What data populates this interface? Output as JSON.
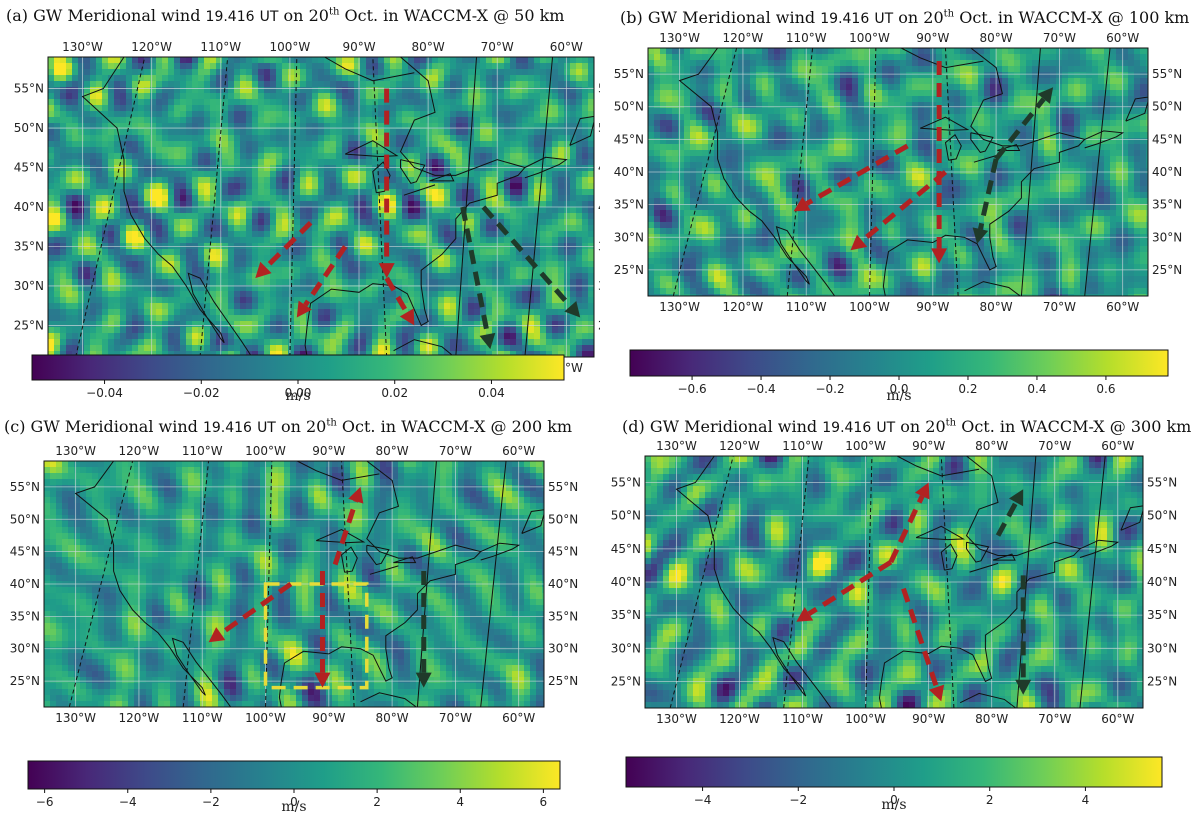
{
  "chart_data": [
    {
      "type": "heatmap",
      "panel_label": "(a)",
      "title": {
        "prefix": "GW Meridional wind",
        "time": "19.416",
        "time_unit": "UT",
        "date_pre": "on 20",
        "date_sup": "th",
        "date_post": "Oct. in WACCM-X @ 50 km"
      },
      "x_ticks": [
        "130°W",
        "120°W",
        "110°W",
        "100°W",
        "90°W",
        "80°W",
        "70°W",
        "60°W"
      ],
      "y_ticks": [
        "25°N",
        "30°N",
        "35°N",
        "40°N",
        "45°N",
        "50°N",
        "55°N"
      ],
      "xlim": [
        -135,
        -56
      ],
      "ylim": [
        21,
        59
      ],
      "colorbar": {
        "vmin": -0.055,
        "vmax": 0.055,
        "ticks": [
          -0.04,
          -0.02,
          0.0,
          0.02,
          0.04
        ],
        "tick_labels": [
          "−0.04",
          "−0.02",
          "0.00",
          "0.02",
          "0.04"
        ],
        "label": "m/s",
        "colormap": "viridis"
      },
      "arrows": [
        {
          "color": "#b22222",
          "from": [
            -86,
            55
          ],
          "to": [
            -86,
            31
          ]
        },
        {
          "color": "#b22222",
          "from": [
            -86,
            31
          ],
          "to": [
            -82,
            25
          ]
        },
        {
          "color": "#b22222",
          "from": [
            -97,
            38
          ],
          "to": [
            -105,
            31
          ]
        },
        {
          "color": "#b22222",
          "from": [
            -92,
            35
          ],
          "to": [
            -99,
            26
          ]
        },
        {
          "color": "#1f3a2a",
          "from": [
            -75,
            40
          ],
          "to": [
            -71,
            22
          ]
        },
        {
          "color": "#1f3a2a",
          "from": [
            -72,
            40
          ],
          "to": [
            -58,
            26
          ]
        }
      ],
      "box": null
    },
    {
      "type": "heatmap",
      "panel_label": "(b)",
      "title": {
        "prefix": "GW Meridional wind",
        "time": "19.416",
        "time_unit": "UT",
        "date_pre": "on 20",
        "date_sup": "th",
        "date_post": "Oct. in WACCM-X @ 100 km"
      },
      "x_ticks": [
        "130°W",
        "120°W",
        "110°W",
        "100°W",
        "90°W",
        "80°W",
        "70°W",
        "60°W"
      ],
      "y_ticks": [
        "25°N",
        "30°N",
        "35°N",
        "40°N",
        "45°N",
        "50°N",
        "55°N"
      ],
      "xlim": [
        -135,
        -56
      ],
      "ylim": [
        21,
        59
      ],
      "colorbar": {
        "vmin": -0.78,
        "vmax": 0.78,
        "ticks": [
          -0.6,
          -0.4,
          -0.2,
          0.0,
          0.2,
          0.4,
          0.6
        ],
        "tick_labels": [
          "−0.6",
          "−0.4",
          "−0.2",
          "0.0",
          "0.2",
          "0.4",
          "0.6"
        ],
        "label": "m/s",
        "colormap": "viridis"
      },
      "arrows": [
        {
          "color": "#b22222",
          "from": [
            -94,
            44
          ],
          "to": [
            -112,
            34
          ]
        },
        {
          "color": "#b22222",
          "from": [
            -88,
            40
          ],
          "to": [
            -103,
            28
          ]
        },
        {
          "color": "#b22222",
          "from": [
            -89,
            57
          ],
          "to": [
            -89,
            26
          ]
        },
        {
          "color": "#1f3a2a",
          "from": [
            -80,
            42
          ],
          "to": [
            -71,
            53
          ]
        },
        {
          "color": "#1f3a2a",
          "from": [
            -80,
            42
          ],
          "to": [
            -83,
            29
          ]
        }
      ],
      "box": null
    },
    {
      "type": "heatmap",
      "panel_label": "(c)",
      "title": {
        "prefix": "GW Meridional wind",
        "time": "19.416",
        "time_unit": "UT",
        "date_pre": "on 20",
        "date_sup": "th",
        "date_post": "Oct. in WACCM-X @ 200 km"
      },
      "x_ticks": [
        "130°W",
        "120°W",
        "110°W",
        "100°W",
        "90°W",
        "80°W",
        "70°W",
        "60°W"
      ],
      "y_ticks": [
        "25°N",
        "30°N",
        "35°N",
        "40°N",
        "45°N",
        "50°N",
        "55°N"
      ],
      "xlim": [
        -135,
        -56
      ],
      "ylim": [
        21,
        59
      ],
      "colorbar": {
        "vmin": -6.4,
        "vmax": 6.4,
        "ticks": [
          -6,
          -4,
          -2,
          0,
          2,
          4,
          6
        ],
        "tick_labels": [
          "−6",
          "−4",
          "−2",
          "0",
          "2",
          "4",
          "6"
        ],
        "label": "m/s",
        "colormap": "viridis"
      },
      "arrows": [
        {
          "color": "#b22222",
          "from": [
            -89,
            43
          ],
          "to": [
            -85,
            55
          ]
        },
        {
          "color": "#b22222",
          "from": [
            -96,
            40
          ],
          "to": [
            -109,
            31
          ]
        },
        {
          "color": "#b22222",
          "from": [
            -91,
            42
          ],
          "to": [
            -91,
            24
          ]
        },
        {
          "color": "#1f3a2a",
          "from": [
            -75,
            42
          ],
          "to": [
            -75,
            24
          ]
        }
      ],
      "box": {
        "color": "#e6dc3a",
        "lon": [
          -100,
          -84
        ],
        "lat": [
          24,
          40
        ]
      }
    },
    {
      "type": "heatmap",
      "panel_label": "(d)",
      "title": {
        "prefix": "GW Meridional wind",
        "time": "19.416",
        "time_unit": "UT",
        "date_pre": "on 20",
        "date_sup": "th",
        "date_post": "Oct. in WACCM-X @ 300 km"
      },
      "x_ticks": [
        "130°W",
        "120°W",
        "110°W",
        "100°W",
        "90°W",
        "80°W",
        "70°W",
        "60°W"
      ],
      "y_ticks": [
        "25°N",
        "30°N",
        "35°N",
        "40°N",
        "45°N",
        "50°N",
        "55°N"
      ],
      "xlim": [
        -135,
        -56
      ],
      "ylim": [
        21,
        59
      ],
      "colorbar": {
        "vmin": -5.6,
        "vmax": 5.6,
        "ticks": [
          -4,
          -2,
          0,
          2,
          4
        ],
        "tick_labels": [
          "−4",
          "−2",
          "0",
          "2",
          "4"
        ],
        "label": "m/s",
        "colormap": "viridis"
      },
      "arrows": [
        {
          "color": "#b22222",
          "from": [
            -96,
            43
          ],
          "to": [
            -111,
            34
          ]
        },
        {
          "color": "#b22222",
          "from": [
            -96,
            43
          ],
          "to": [
            -90,
            55
          ]
        },
        {
          "color": "#b22222",
          "from": [
            -94,
            39
          ],
          "to": [
            -88,
            22
          ]
        },
        {
          "color": "#1f3a2a",
          "from": [
            -79,
            47
          ],
          "to": [
            -75,
            54
          ]
        },
        {
          "color": "#1f3a2a",
          "from": [
            -75,
            41
          ],
          "to": [
            -75,
            23
          ]
        }
      ],
      "box": null
    }
  ]
}
